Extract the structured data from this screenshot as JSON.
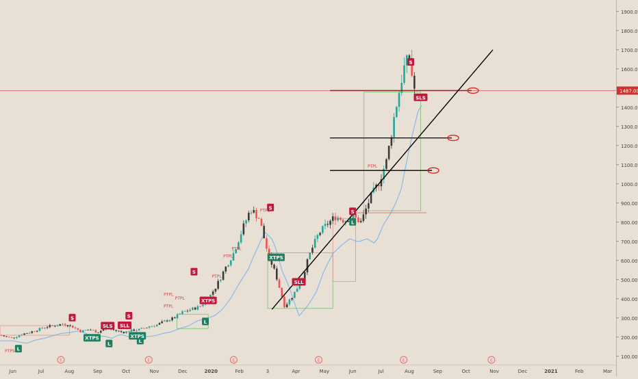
{
  "chart_data": {
    "type": "line",
    "title": "",
    "xlabel": "",
    "ylabel": "",
    "ylim": [
      60,
      1960
    ],
    "y_ticks": [
      100,
      200,
      300,
      400,
      500,
      600,
      700,
      800,
      900,
      1000,
      1100,
      1200,
      1300,
      1400,
      1500,
      1600,
      1700,
      1800,
      1900
    ],
    "y_tick_labels": [
      "100.00",
      "200.00",
      "300.00",
      "400.00",
      "500.00",
      "600.00",
      "700.00",
      "800.00",
      "900.00",
      "1000.00",
      "1100.00",
      "1200.00",
      "1300.00",
      "1400.00",
      "1500.00",
      "1600.00",
      "1700.00",
      "1800.00",
      "1900.00"
    ],
    "x_ticks": [
      {
        "label": "Jun",
        "t": 0
      },
      {
        "label": "Jul",
        "t": 1
      },
      {
        "label": "Aug",
        "t": 2
      },
      {
        "label": "Sep",
        "t": 3
      },
      {
        "label": "Oct",
        "t": 4
      },
      {
        "label": "Nov",
        "t": 5
      },
      {
        "label": "Dec",
        "t": 6
      },
      {
        "label": "2020",
        "t": 7
      },
      {
        "label": "Feb",
        "t": 8
      },
      {
        "label": "3",
        "t": 9
      },
      {
        "label": "Apr",
        "t": 10
      },
      {
        "label": "May",
        "t": 11
      },
      {
        "label": "Jun",
        "t": 12
      },
      {
        "label": "Jul",
        "t": 13
      },
      {
        "label": "Aug",
        "t": 14
      },
      {
        "label": "Sep",
        "t": 15
      },
      {
        "label": "Oct",
        "t": 16
      },
      {
        "label": "Nov",
        "t": 17
      },
      {
        "label": "Dec",
        "t": 18
      },
      {
        "label": "2021",
        "t": 19
      },
      {
        "label": "Feb",
        "t": 20
      },
      {
        "label": "Mar",
        "t": 21
      }
    ],
    "xlim": [
      -0.45,
      21.3
    ],
    "price_series": {
      "name": "",
      "t": [
        -0.45,
        -0.2,
        0.0,
        0.3,
        0.6,
        0.9,
        1.2,
        1.5,
        1.8,
        2.1,
        2.4,
        2.7,
        3.0,
        3.3,
        3.6,
        3.9,
        4.2,
        4.5,
        4.8,
        5.1,
        5.4,
        5.7,
        6.0,
        6.3,
        6.6,
        6.9,
        7.2,
        7.5,
        7.8,
        8.1,
        8.4,
        8.7,
        9.0,
        9.3,
        9.6,
        9.9,
        10.2,
        10.5,
        10.8,
        11.1,
        11.4,
        11.7,
        12.0,
        12.3,
        12.6,
        12.9,
        13.2,
        13.5,
        13.8,
        14.0,
        14.1,
        14.2
      ],
      "close": [
        210,
        200,
        195,
        215,
        225,
        240,
        255,
        260,
        270,
        255,
        230,
        240,
        225,
        250,
        235,
        225,
        235,
        240,
        255,
        265,
        285,
        300,
        330,
        345,
        360,
        400,
        470,
        560,
        640,
        760,
        870,
        820,
        640,
        520,
        360,
        420,
        500,
        640,
        740,
        790,
        830,
        810,
        830,
        800,
        920,
        1000,
        1120,
        1380,
        1600,
        1660,
        1560,
        1480
      ]
    },
    "horizontal_levels": [
      1487,
      1240,
      1070
    ],
    "trendline": [
      {
        "t": 9.15,
        "v": 345
      },
      {
        "t": 16.95,
        "v": 1700
      }
    ],
    "last_price_label": "1487.00",
    "colors": {
      "background": "#e8e0d4",
      "candle_up": "#26a69a",
      "candle_down": "#ef5350",
      "candle_dark": "#3a3a3a",
      "level_line": "#000000",
      "price_line": "#d44040",
      "cloud_blue": "#8ab8e8",
      "marker_red": "#c2183a",
      "marker_green": "#1e7f61"
    },
    "signal_labels": [
      {
        "text": "S",
        "t": 2.1,
        "v": 300,
        "kind": "sell"
      },
      {
        "text": "S",
        "t": 4.1,
        "v": 310,
        "kind": "sell"
      },
      {
        "text": "S",
        "t": 6.4,
        "v": 540,
        "kind": "sell"
      },
      {
        "text": "S",
        "t": 9.1,
        "v": 875,
        "kind": "sell"
      },
      {
        "text": "S",
        "t": 12.0,
        "v": 855,
        "kind": "sell"
      },
      {
        "text": "S",
        "t": 14.05,
        "v": 1635,
        "kind": "sell"
      },
      {
        "text": "SLS",
        "t": 3.35,
        "v": 258,
        "kind": "sell"
      },
      {
        "text": "SLL",
        "t": 3.95,
        "v": 260,
        "kind": "sell"
      },
      {
        "text": "SLL",
        "t": 10.1,
        "v": 487,
        "kind": "sell"
      },
      {
        "text": "SLS",
        "t": 14.4,
        "v": 1450,
        "kind": "sell"
      },
      {
        "text": "XTPS",
        "t": 6.9,
        "v": 390,
        "kind": "sell"
      },
      {
        "text": "L",
        "t": 0.2,
        "v": 138,
        "kind": "buy"
      },
      {
        "text": "L",
        "t": 3.4,
        "v": 165,
        "kind": "buy"
      },
      {
        "text": "L",
        "t": 4.5,
        "v": 180,
        "kind": "buy"
      },
      {
        "text": "L",
        "t": 6.8,
        "v": 280,
        "kind": "buy"
      },
      {
        "text": "L",
        "t": 12.0,
        "v": 800,
        "kind": "buy"
      },
      {
        "text": "XTPS",
        "t": 2.8,
        "v": 195,
        "kind": "buy"
      },
      {
        "text": "XTPS",
        "t": 4.4,
        "v": 205,
        "kind": "buy"
      },
      {
        "text": "XTPS",
        "t": 9.3,
        "v": 615,
        "kind": "buy"
      }
    ],
    "text_annotations": [
      {
        "text": "PTPS",
        "t": -0.1,
        "v": 120
      },
      {
        "text": "PTPL",
        "t": 5.5,
        "v": 355
      },
      {
        "text": "PTPL",
        "t": 5.9,
        "v": 395
      },
      {
        "text": "PTPL",
        "t": 5.5,
        "v": 415
      },
      {
        "text": "PTPL",
        "t": 7.2,
        "v": 510
      },
      {
        "text": "PTPL",
        "t": 7.6,
        "v": 615
      },
      {
        "text": "PTPL",
        "t": 7.9,
        "v": 655
      },
      {
        "text": "PTPL",
        "t": 8.9,
        "v": 855
      },
      {
        "text": "PTPL",
        "t": 12.7,
        "v": 1085
      }
    ],
    "earnings_markers": [
      "E",
      "E",
      "E",
      "E",
      "E",
      "E"
    ],
    "earnings_t": [
      1.7,
      4.8,
      7.8,
      10.8,
      13.8,
      16.9
    ]
  }
}
